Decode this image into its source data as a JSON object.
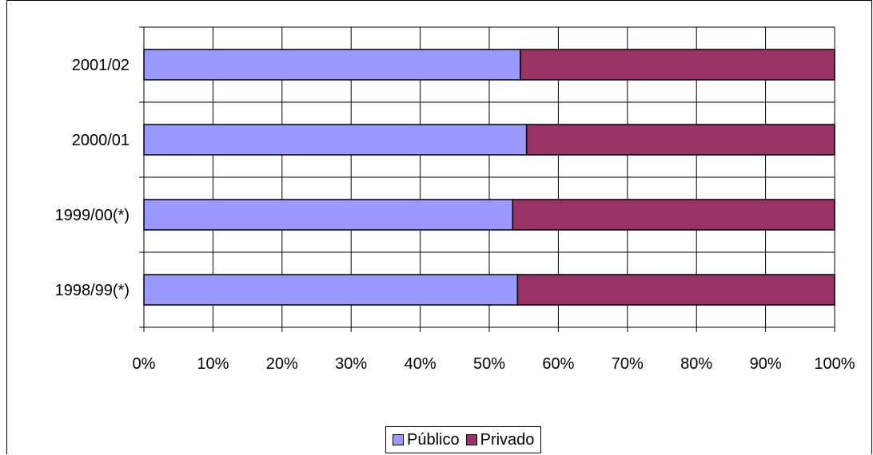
{
  "chart_data": {
    "type": "bar",
    "orientation": "horizontal",
    "stacked": "percent",
    "categories": [
      "2001/02",
      "2000/01",
      "1999/00(*)",
      "1998/99(*)"
    ],
    "series": [
      {
        "name": "Público",
        "values": [
          54.5,
          55.4,
          53.4,
          54.1
        ],
        "color": "#9999ff"
      },
      {
        "name": "Privado",
        "values": [
          45.5,
          44.6,
          46.6,
          45.9
        ],
        "color": "#993366"
      }
    ],
    "xlim": [
      0,
      100
    ],
    "x_ticks": [
      "0%",
      "10%",
      "20%",
      "30%",
      "40%",
      "50%",
      "60%",
      "70%",
      "80%",
      "90%",
      "100%"
    ],
    "grid": true,
    "legend_position": "bottom",
    "title": "",
    "xlabel": "",
    "ylabel": ""
  }
}
